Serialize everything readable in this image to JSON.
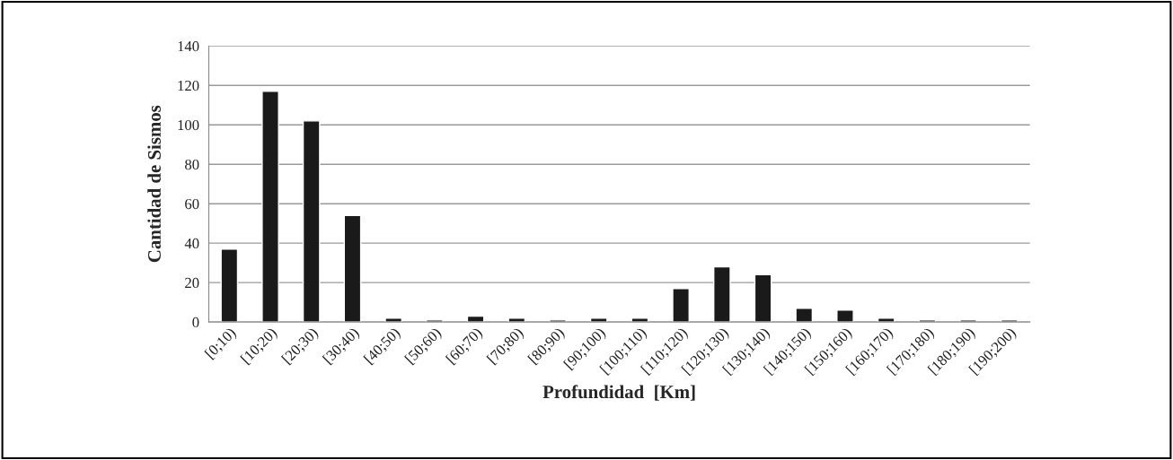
{
  "chart_data": {
    "type": "bar",
    "categories": [
      "[0;10)",
      "[10;20)",
      "[20;30)",
      "[30;40)",
      "[40;50)",
      "[50;60)",
      "[60;70)",
      "[70;80)",
      "[80;90)",
      "[90;100)",
      "[100;110)",
      "[110;120)",
      "[120;130)",
      "[130;140)",
      "[140;150)",
      "[150;160)",
      "[160;170)",
      "[170;180)",
      "[180;190)",
      "[190;200)"
    ],
    "values": [
      37,
      117,
      102,
      54,
      2,
      1,
      3,
      2,
      1,
      2,
      2,
      17,
      28,
      24,
      7,
      6,
      2,
      1,
      1,
      1
    ],
    "color": "#1a1a1a",
    "xlabel": "Profundidad  [Km]",
    "ylabel": "Cantidad de Sismos",
    "ylim": [
      0,
      140
    ],
    "yticks": [
      0,
      20,
      40,
      60,
      80,
      100,
      120,
      140
    ],
    "grid": "y"
  }
}
